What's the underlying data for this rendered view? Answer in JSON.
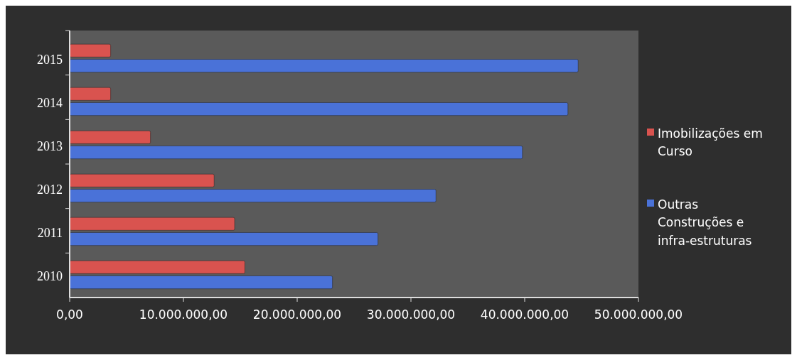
{
  "chart_data": {
    "type": "bar",
    "orientation": "horizontal",
    "categories": [
      "2015",
      "2014",
      "2013",
      "2012",
      "2011",
      "2010"
    ],
    "series": [
      {
        "name": "Imobilizações em Curso",
        "color": "#d9534f",
        "values": [
          3600000.0,
          3600000.0,
          7100000.0,
          12700000.0,
          14500000.0,
          15400000.0
        ]
      },
      {
        "name": "Outras Construções e infra-estruturas",
        "color": "#4a72d8",
        "values": [
          44700000.0,
          43800000.0,
          39800000.0,
          32200000.0,
          27100000.0,
          23100000.0
        ]
      }
    ],
    "xlim": [
      0,
      50000000
    ],
    "xticks": [
      {
        "value": 0,
        "label": "0,00"
      },
      {
        "value": 10000000,
        "label": "10.000.000,00"
      },
      {
        "value": 20000000,
        "label": "20.000.000,00"
      },
      {
        "value": 30000000,
        "label": "30.000.000,00"
      },
      {
        "value": 40000000,
        "label": "40.000.000,00"
      },
      {
        "value": 50000000,
        "label": "50.000.000,00"
      }
    ],
    "legend": "right"
  }
}
